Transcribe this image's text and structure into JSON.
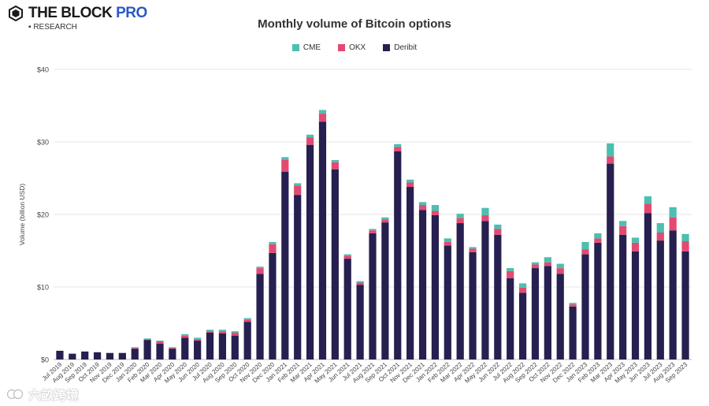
{
  "brand": {
    "name_main": "THE BLOCK",
    "name_accent": "PRO",
    "subtitle": "RESEARCH"
  },
  "watermark": {
    "text": "六畝跨境"
  },
  "colors": {
    "cme": "#4cbfb0",
    "okx": "#e24a72",
    "deribit": "#262050",
    "grid": "#e6e6e6",
    "brand_accent": "#2b59c3"
  },
  "chart_data": {
    "type": "bar",
    "stacked": true,
    "title": "Monthly volume of Bitcoin options",
    "xlabel": "",
    "ylabel": "Volume (billion USD)",
    "ylim": [
      0,
      40
    ],
    "yticks": [
      0,
      10,
      20,
      30,
      40
    ],
    "ytick_labels": [
      "$0",
      "$10",
      "$20",
      "$30",
      "$40"
    ],
    "legend_position": "top-center",
    "grid": true,
    "categories": [
      "Jul 2019",
      "Aug 2019",
      "Sep 2019",
      "Oct 2019",
      "Nov 2019",
      "Dec 2019",
      "Jan 2020",
      "Feb 2020",
      "Mar 2020",
      "Apr 2020",
      "May 2020",
      "Jun 2020",
      "Jul 2020",
      "Aug 2020",
      "Sep 2020",
      "Oct 2020",
      "Nov 2020",
      "Dec 2020",
      "Jan 2021",
      "Feb 2021",
      "Mar 2021",
      "Apr 2021",
      "May 2021",
      "Jun 2021",
      "Jul 2021",
      "Aug 2021",
      "Sep 2021",
      "Oct 2021",
      "Nov 2021",
      "Dec 2021",
      "Jan 2022",
      "Feb 2022",
      "Mar 2022",
      "Apr 2022",
      "May 2022",
      "Jun 2022",
      "Jul 2022",
      "Aug 2022",
      "Sep 2022",
      "Oct 2022",
      "Nov 2022",
      "Dec 2022",
      "Jan 2023",
      "Feb 2023",
      "Mar 2023",
      "Apr 2023",
      "May 2023",
      "Jun 2023",
      "Jul 2023",
      "Aug 2023",
      "Sep 2023"
    ],
    "series": [
      {
        "name": "Deribit",
        "key": "deribit",
        "values": [
          1.2,
          0.8,
          1.1,
          1.0,
          0.9,
          0.9,
          1.5,
          2.7,
          2.2,
          1.5,
          3.0,
          2.6,
          3.7,
          3.6,
          3.3,
          5.2,
          11.8,
          14.7,
          25.9,
          22.7,
          29.6,
          32.8,
          26.2,
          13.9,
          10.3,
          17.4,
          18.9,
          28.7,
          23.8,
          20.6,
          19.9,
          15.7,
          18.8,
          14.8,
          19.1,
          17.2,
          11.2,
          9.2,
          12.6,
          12.9,
          11.8,
          7.3,
          14.5,
          16.1,
          27.0,
          17.2,
          14.9,
          20.2,
          16.4,
          17.8,
          14.9
        ]
      },
      {
        "name": "OKX",
        "key": "okx",
        "values": [
          0.0,
          0.0,
          0.0,
          0.0,
          0.0,
          0.0,
          0.1,
          0.1,
          0.3,
          0.1,
          0.3,
          0.2,
          0.2,
          0.3,
          0.4,
          0.3,
          0.8,
          1.2,
          1.6,
          1.3,
          1.0,
          1.1,
          1.0,
          0.4,
          0.3,
          0.4,
          0.4,
          0.6,
          0.6,
          0.7,
          0.6,
          0.5,
          0.7,
          0.5,
          0.8,
          0.8,
          1.0,
          0.7,
          0.5,
          0.5,
          0.8,
          0.3,
          0.7,
          0.6,
          1.0,
          1.2,
          1.2,
          1.3,
          1.1,
          1.8,
          1.4
        ]
      },
      {
        "name": "CME",
        "key": "cme",
        "values": [
          0.0,
          0.0,
          0.0,
          0.0,
          0.0,
          0.0,
          0.1,
          0.1,
          0.1,
          0.1,
          0.2,
          0.2,
          0.2,
          0.2,
          0.2,
          0.2,
          0.2,
          0.3,
          0.4,
          0.3,
          0.4,
          0.5,
          0.3,
          0.2,
          0.2,
          0.2,
          0.3,
          0.4,
          0.4,
          0.4,
          0.8,
          0.5,
          0.6,
          0.2,
          1.0,
          0.6,
          0.4,
          0.6,
          0.3,
          0.7,
          0.6,
          0.2,
          1.0,
          0.7,
          1.8,
          0.7,
          0.7,
          1.0,
          1.3,
          1.4,
          1.0
        ]
      }
    ],
    "legend": [
      {
        "label": "CME",
        "key": "cme"
      },
      {
        "label": "OKX",
        "key": "okx"
      },
      {
        "label": "Deribit",
        "key": "deribit"
      }
    ]
  }
}
